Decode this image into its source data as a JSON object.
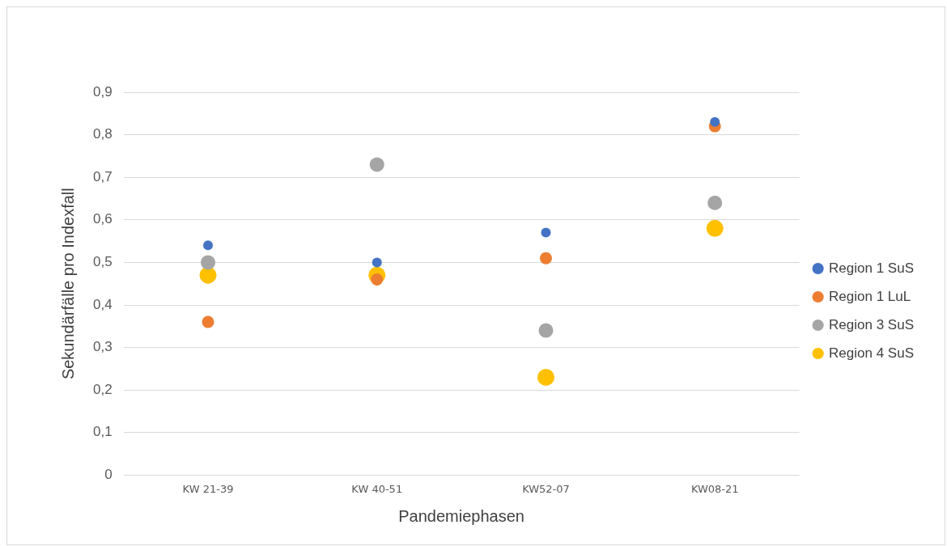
{
  "chart_data": {
    "type": "scatter",
    "xlabel": "Pandemiephasen",
    "ylabel": "Sekundärfälle pro Indexfall",
    "categories": [
      "KW 21-39",
      "KW 40-51",
      "KW52-07",
      "KW08-21"
    ],
    "series": [
      {
        "name": "Region 1 SuS",
        "color": "#4472c4",
        "values": [
          0.54,
          0.5,
          0.57,
          0.83
        ]
      },
      {
        "name": "Region 1 LuL",
        "color": "#ed7d31",
        "values": [
          0.36,
          0.46,
          0.51,
          0.82
        ]
      },
      {
        "name": "Region 3 SuS",
        "color": "#a5a5a5",
        "values": [
          0.5,
          0.73,
          0.34,
          0.64
        ]
      },
      {
        "name": "Region 4 SuS",
        "color": "#ffc000",
        "values": [
          0.47,
          0.47,
          0.23,
          0.58
        ]
      }
    ],
    "ylim": [
      0,
      0.9
    ],
    "yticks": [
      {
        "value": 0,
        "label": "0"
      },
      {
        "value": 0.1,
        "label": "0,1"
      },
      {
        "value": 0.2,
        "label": "0,2"
      },
      {
        "value": 0.3,
        "label": "0,3"
      },
      {
        "value": 0.4,
        "label": "0,4"
      },
      {
        "value": 0.5,
        "label": "0,5"
      },
      {
        "value": 0.6,
        "label": "0,6"
      },
      {
        "value": 0.7,
        "label": "0,7"
      },
      {
        "value": 0.8,
        "label": "0,8"
      },
      {
        "value": 0.9,
        "label": "0,9"
      }
    ],
    "grid": "y",
    "legend": "right",
    "marker": "circle"
  }
}
